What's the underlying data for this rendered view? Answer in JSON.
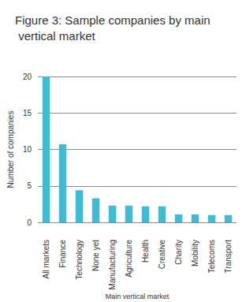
{
  "chart_data": {
    "type": "bar",
    "title": "Figure 3: Sample companies by main vertical market",
    "x_label": "Main vertical market",
    "y_label": "Number of companies",
    "categories": [
      "All markets",
      "Finance",
      "Technology",
      "None yet",
      "Manufacturing",
      "Agriculture",
      "Health",
      "Creative",
      "Charity",
      "Mobility",
      "Telecoms",
      "Transport"
    ],
    "values": [
      20,
      10.7,
      4.4,
      3.3,
      2.3,
      2.3,
      2.2,
      2.2,
      1.1,
      1.1,
      1,
      1
    ],
    "color": "#3dbcd6",
    "ylim": [
      0,
      20
    ],
    "yticks": [
      0,
      5,
      10,
      15,
      20
    ],
    "grid": true
  }
}
